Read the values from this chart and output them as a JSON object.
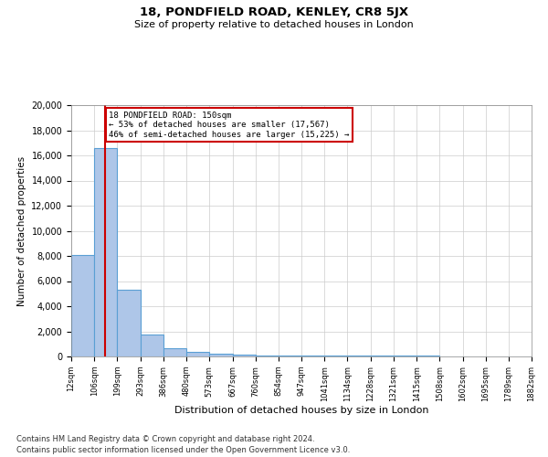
{
  "title1": "18, PONDFIELD ROAD, KENLEY, CR8 5JX",
  "title2": "Size of property relative to detached houses in London",
  "xlabel": "Distribution of detached houses by size in London",
  "ylabel": "Number of detached properties",
  "bin_edges": [
    12,
    106,
    199,
    293,
    386,
    480,
    573,
    667,
    760,
    854,
    947,
    1041,
    1134,
    1228,
    1321,
    1415,
    1508,
    1602,
    1695,
    1789,
    1882
  ],
  "bar_heights": [
    8100,
    16600,
    5300,
    1750,
    650,
    350,
    200,
    150,
    100,
    100,
    100,
    75,
    75,
    50,
    50,
    50,
    25,
    25,
    25,
    25
  ],
  "bar_color": "#aec6e8",
  "bar_edge_color": "#5a9fd4",
  "property_size": 150,
  "red_line_color": "#cc0000",
  "annotation_text": "18 PONDFIELD ROAD: 150sqm\n← 53% of detached houses are smaller (17,567)\n46% of semi-detached houses are larger (15,225) →",
  "annotation_box_color": "#cc0000",
  "ylim": [
    0,
    20000
  ],
  "yticks": [
    0,
    2000,
    4000,
    6000,
    8000,
    10000,
    12000,
    14000,
    16000,
    18000,
    20000
  ],
  "footnote1": "Contains HM Land Registry data © Crown copyright and database right 2024.",
  "footnote2": "Contains public sector information licensed under the Open Government Licence v3.0.",
  "background_color": "#ffffff",
  "grid_color": "#cccccc"
}
